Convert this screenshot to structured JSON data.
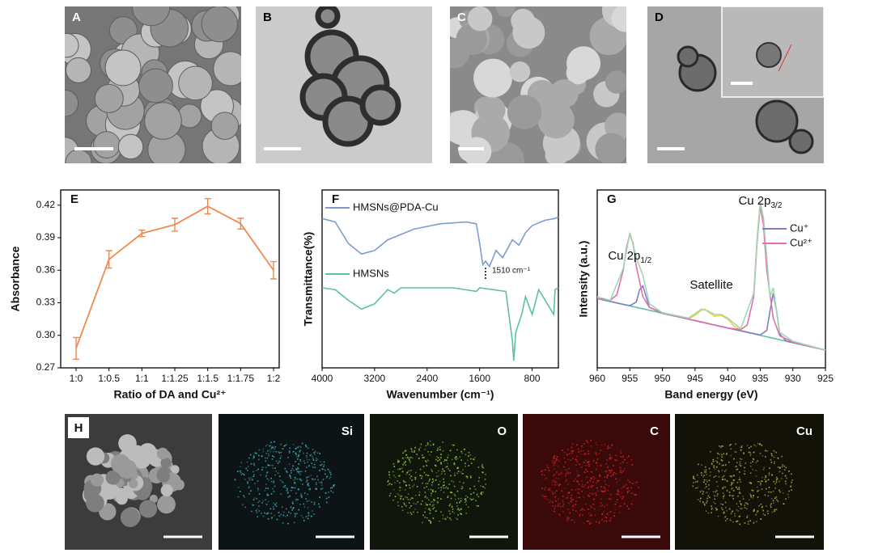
{
  "images": [
    {
      "label": "A"
    },
    {
      "label": "B"
    },
    {
      "label": "C"
    },
    {
      "label": "D"
    }
  ],
  "mapping": {
    "label": "H",
    "elements": [
      "Si",
      "O",
      "C",
      "Cu"
    ]
  },
  "chart_data": [
    {
      "type": "line",
      "label": "E",
      "x_label": "Ratio of  DA and Cu²⁺",
      "y_label": "Absorbance",
      "categories": [
        "1:0",
        "1:0.5",
        "1:1",
        "1:1.25",
        "1:1.5",
        "1:1.75",
        "1:2"
      ],
      "values": [
        0.288,
        0.37,
        0.394,
        0.402,
        0.419,
        0.403,
        0.36
      ],
      "errors": [
        0.01,
        0.008,
        0.003,
        0.006,
        0.007,
        0.005,
        0.008
      ],
      "color": "#f0884f",
      "ylim": [
        0.27,
        0.434
      ],
      "yticks": [
        0.27,
        {
          "value": 0.3,
          "label": "0.30"
        },
        0.33,
        0.36,
        0.39,
        0.42
      ]
    },
    {
      "type": "spectrum",
      "label": "F",
      "x_label": "Wavenumber  (cm⁻¹)",
      "y_label": "Transmittance(%)",
      "xlim": [
        4000,
        400
      ],
      "xticks": [
        4000,
        3200,
        2400,
        1600,
        800
      ],
      "ylim": [
        0,
        100
      ],
      "series": [
        {
          "name": "HMSNs@PDA-Cu",
          "color": "#7f9ccc",
          "x": [
            4000,
            3800,
            3600,
            3400,
            3200,
            3000,
            2600,
            2200,
            1800,
            1650,
            1600,
            1550,
            1510,
            1450,
            1350,
            1250,
            1100,
            1000,
            900,
            800,
            600,
            450,
            400
          ],
          "values": [
            84,
            82,
            70,
            64,
            66,
            72,
            78,
            81,
            82,
            81,
            70,
            58,
            60,
            57,
            66,
            62,
            72,
            69,
            76,
            80,
            83,
            84,
            85
          ]
        },
        {
          "name": "HMSNs",
          "color": "#5cc29b",
          "x": [
            4000,
            3800,
            3600,
            3400,
            3200,
            3000,
            2900,
            2800,
            2000,
            1650,
            1600,
            1200,
            1100,
            1080,
            1050,
            960,
            900,
            800,
            700,
            470,
            450,
            400
          ],
          "values": [
            45,
            44,
            38,
            33,
            36,
            44,
            42,
            45,
            45,
            43,
            45,
            43,
            15,
            4,
            20,
            30,
            40,
            30,
            44,
            30,
            44,
            45
          ]
        }
      ],
      "annotation": {
        "text": "1510 cm⁻¹",
        "x": 1510
      }
    },
    {
      "type": "spectrum",
      "label": "G",
      "x_label": "Band energy (eV)",
      "y_label": "Intensity (a.u.)",
      "xlim": [
        960,
        925
      ],
      "xticks": [
        960,
        955,
        950,
        945,
        940,
        935,
        930,
        925
      ],
      "ylim": [
        0,
        100
      ],
      "series": [
        {
          "color": "#60c0a0",
          "x": [
            960,
            925
          ],
          "values": [
            39,
            10
          ]
        },
        {
          "color": "#f2d040",
          "x": [
            948,
            946,
            945,
            944,
            943.5,
            943,
            942,
            941,
            940,
            939,
            938,
            936
          ],
          "values": [
            29.1,
            27.6,
            29.5,
            32.5,
            33,
            31.5,
            29,
            29.5,
            27.5,
            23.5,
            21,
            19.1
          ]
        },
        {
          "name": "Cu⁺",
          "color": "#8080c0",
          "x": [
            960,
            956,
            955,
            954,
            953.5,
            953,
            952.5,
            952,
            950,
            940,
            935,
            934,
            933.5,
            933,
            932.5,
            932,
            931,
            925
          ],
          "values": [
            39,
            35.7,
            35,
            37,
            44,
            46,
            40,
            34,
            30.7,
            22.4,
            18.5,
            21,
            32,
            42,
            32,
            19,
            15,
            10
          ]
        },
        {
          "name": "Cu²⁺",
          "color": "#e070b0",
          "x": [
            960,
            958,
            957,
            956,
            955.5,
            955,
            954.5,
            954,
            953,
            952,
            950,
            946,
            944,
            942,
            940,
            938,
            937,
            936,
            935.5,
            935,
            934.5,
            934,
            933,
            932,
            930,
            925
          ],
          "values": [
            39,
            38,
            41,
            55,
            68,
            75,
            70,
            57,
            40,
            34,
            31,
            27.4,
            25.8,
            24.1,
            22.4,
            21.5,
            24,
            40,
            70,
            91,
            80,
            55,
            28,
            18,
            14.5,
            10
          ]
        },
        {
          "color": "#a0d8b0",
          "x": [
            960,
            958,
            956,
            955,
            954,
            953,
            952,
            950,
            946,
            944,
            943,
            942,
            941,
            940,
            938,
            936,
            935.5,
            935,
            934.5,
            934,
            933.5,
            933,
            932,
            930,
            925
          ],
          "values": [
            40,
            38,
            56,
            76,
            62,
            52,
            36,
            31,
            28,
            33,
            32,
            30,
            30,
            28,
            22,
            42,
            72,
            93,
            84,
            62,
            40,
            45,
            20,
            15,
            10
          ]
        }
      ],
      "annotations": [
        {
          "text": "Cu 2p",
          "sub": "1/2",
          "x": 955
        },
        {
          "text": "Satellite",
          "x": 942.5
        },
        {
          "text": "Cu 2p",
          "sub": "3/2",
          "x": 935
        }
      ]
    }
  ]
}
